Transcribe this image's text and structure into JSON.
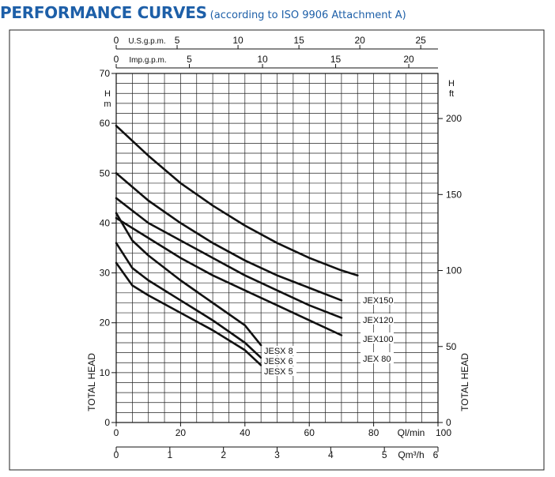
{
  "header": {
    "title": "PERFORMANCE CURVES",
    "subtitle": "(according to ISO 9906 Attachment A)"
  },
  "chart_data": {
    "type": "line",
    "x_axis": {
      "label": "Ql/min",
      "range": [
        0,
        100
      ],
      "ticks": [
        0,
        20,
        40,
        60,
        80,
        100
      ],
      "tick_labels": [
        "0",
        "20",
        "40",
        "60",
        "80",
        "100"
      ]
    },
    "x_axis_m3": {
      "label": "Qm³/h",
      "range": [
        0,
        6
      ],
      "ticks": [
        0,
        1,
        2,
        3,
        4,
        5,
        6
      ],
      "tick_labels": [
        "0",
        "1",
        "2",
        "3",
        "4",
        "5",
        "6"
      ]
    },
    "x_axis_usgpm": {
      "label": "U.S.g.p.m.",
      "ticks": [
        0,
        5,
        10,
        15,
        20,
        25
      ],
      "tick_labels": [
        "0",
        "5",
        "10",
        "15",
        "20",
        "25"
      ]
    },
    "x_axis_impgpm": {
      "label": "Imp.g.p.m.",
      "ticks": [
        0,
        5,
        10,
        15,
        20
      ],
      "tick_labels": [
        "0",
        "5",
        "10",
        "15",
        "20"
      ]
    },
    "y_axis": {
      "label": "TOTAL HEAD",
      "unit_h": "H",
      "unit": "m",
      "range": [
        0,
        70
      ],
      "ticks": [
        0,
        10,
        20,
        30,
        40,
        50,
        60,
        70
      ],
      "tick_labels": [
        "0",
        "10",
        "20",
        "30",
        "40",
        "50",
        "60",
        "70"
      ]
    },
    "y_axis_right": {
      "label": "TOTAL HEAD",
      "unit_h": "H",
      "unit": "ft",
      "ticks": [
        0,
        50,
        100,
        150,
        200
      ],
      "tick_labels": [
        "0",
        "50",
        "100",
        "150",
        "200"
      ]
    },
    "grid": true,
    "series": [
      {
        "name": "JEX150",
        "x": [
          0,
          10,
          20,
          30,
          40,
          50,
          60,
          70,
          75
        ],
        "y": [
          59.5,
          53.5,
          48,
          43.5,
          39.5,
          36,
          33,
          30.5,
          29.5
        ]
      },
      {
        "name": "JEX120",
        "x": [
          0,
          10,
          20,
          30,
          40,
          50,
          60,
          70
        ],
        "y": [
          50,
          44.5,
          40,
          36,
          32.5,
          29.5,
          27,
          24.5
        ]
      },
      {
        "name": "JEX100",
        "x": [
          0,
          10,
          20,
          30,
          40,
          50,
          60,
          70
        ],
        "y": [
          45,
          40,
          36.5,
          33,
          29.5,
          26.5,
          23.5,
          21
        ]
      },
      {
        "name": "JEX 80",
        "x": [
          0,
          10,
          20,
          30,
          40,
          50,
          60,
          70
        ],
        "y": [
          41,
          37,
          33,
          29.5,
          26.5,
          23.5,
          20.5,
          17.5
        ]
      },
      {
        "name": "JESX 8",
        "x": [
          0,
          5,
          10,
          20,
          30,
          40,
          45
        ],
        "y": [
          42,
          36.5,
          33.5,
          28.5,
          24,
          19.5,
          15.5
        ]
      },
      {
        "name": "JESX 6",
        "x": [
          0,
          5,
          10,
          20,
          30,
          40,
          45
        ],
        "y": [
          36,
          31,
          28.5,
          24.5,
          20.5,
          16,
          13
        ]
      },
      {
        "name": "JESX 5",
        "x": [
          0,
          5,
          10,
          20,
          30,
          40,
          45
        ],
        "y": [
          32,
          27.5,
          25.5,
          22,
          18.5,
          14.5,
          11.5
        ]
      }
    ]
  }
}
